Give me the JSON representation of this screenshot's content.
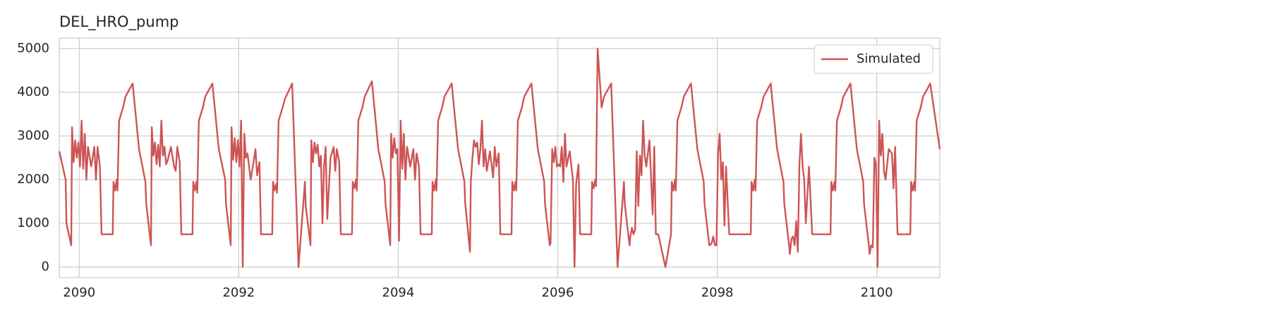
{
  "chart_data": {
    "type": "line",
    "title": "DEL_HRO_pump",
    "xlim": [
      2089.75,
      2100.79
    ],
    "ylim": [
      -240,
      5240
    ],
    "xticks": [
      2090,
      2092,
      2094,
      2096,
      2098,
      2100
    ],
    "yticks": [
      0,
      1000,
      2000,
      3000,
      4000,
      5000
    ],
    "grid": true,
    "legend": "upper right",
    "x": [
      2089.75,
      2089.83,
      2089.84,
      2089.9,
      2089.91,
      2089.93,
      2089.95,
      2089.97,
      2089.99,
      2090.01,
      2090.03,
      2090.05,
      2090.07,
      2090.09,
      2090.11,
      2090.15,
      2090.19,
      2090.21,
      2090.23,
      2090.26,
      2090.28,
      2090.42,
      2090.43,
      2090.45,
      2090.47,
      2090.48,
      2090.5,
      2090.55,
      2090.58,
      2090.67,
      2090.75,
      2090.83,
      2090.84,
      2090.9,
      2090.91,
      2090.93,
      2090.95,
      2090.97,
      2090.99,
      2091.01,
      2091.03,
      2091.05,
      2091.07,
      2091.09,
      2091.11,
      2091.15,
      2091.19,
      2091.21,
      2091.23,
      2091.26,
      2091.28,
      2091.42,
      2091.43,
      2091.45,
      2091.47,
      2091.48,
      2091.5,
      2091.55,
      2091.58,
      2091.67,
      2091.75,
      2091.83,
      2091.84,
      2091.9,
      2091.91,
      2091.93,
      2091.95,
      2091.97,
      2091.99,
      2092.01,
      2092.03,
      2092.05,
      2092.07,
      2092.09,
      2092.11,
      2092.15,
      2092.19,
      2092.21,
      2092.23,
      2092.26,
      2092.28,
      2092.42,
      2092.43,
      2092.45,
      2092.47,
      2092.48,
      2092.5,
      2092.55,
      2092.58,
      2092.67,
      2092.75,
      2092.83,
      2092.84,
      2092.9,
      2092.91,
      2092.93,
      2092.95,
      2092.97,
      2092.99,
      2093.01,
      2093.03,
      2093.05,
      2093.07,
      2093.09,
      2093.11,
      2093.15,
      2093.19,
      2093.21,
      2093.23,
      2093.26,
      2093.28,
      2093.42,
      2093.43,
      2093.45,
      2093.47,
      2093.48,
      2093.5,
      2093.55,
      2093.58,
      2093.67,
      2093.75,
      2093.83,
      2093.84,
      2093.9,
      2093.91,
      2093.93,
      2093.95,
      2093.97,
      2093.99,
      2094.01,
      2094.03,
      2094.05,
      2094.07,
      2094.09,
      2094.11,
      2094.15,
      2094.19,
      2094.21,
      2094.23,
      2094.26,
      2094.28,
      2094.42,
      2094.43,
      2094.45,
      2094.47,
      2094.48,
      2094.5,
      2094.55,
      2094.58,
      2094.67,
      2094.75,
      2094.83,
      2094.84,
      2094.9,
      2094.91,
      2094.93,
      2094.95,
      2094.97,
      2094.99,
      2095.01,
      2095.03,
      2095.05,
      2095.07,
      2095.09,
      2095.11,
      2095.15,
      2095.19,
      2095.21,
      2095.23,
      2095.26,
      2095.28,
      2095.42,
      2095.43,
      2095.45,
      2095.47,
      2095.48,
      2095.5,
      2095.55,
      2095.58,
      2095.67,
      2095.75,
      2095.83,
      2095.84,
      2095.9,
      2095.91,
      2095.93,
      2095.95,
      2095.97,
      2095.99,
      2096.01,
      2096.03,
      2096.05,
      2096.07,
      2096.09,
      2096.11,
      2096.15,
      2096.19,
      2096.21,
      2096.23,
      2096.26,
      2096.28,
      2096.42,
      2096.43,
      2096.45,
      2096.47,
      2096.48,
      2096.5,
      2096.55,
      2096.58,
      2096.67,
      2096.75,
      2096.83,
      2096.84,
      2096.9,
      2096.91,
      2096.93,
      2096.95,
      2096.97,
      2096.99,
      2097.01,
      2097.03,
      2097.05,
      2097.07,
      2097.09,
      2097.11,
      2097.15,
      2097.19,
      2097.21,
      2097.23,
      2097.26,
      2097.35,
      2097.42,
      2097.43,
      2097.45,
      2097.47,
      2097.48,
      2097.5,
      2097.55,
      2097.58,
      2097.67,
      2097.75,
      2097.83,
      2097.84,
      2097.9,
      2097.91,
      2097.93,
      2097.95,
      2097.97,
      2097.99,
      2098.01,
      2098.03,
      2098.05,
      2098.07,
      2098.09,
      2098.11,
      2098.15,
      2098.19,
      2098.21,
      2098.23,
      2098.26,
      2098.28,
      2098.42,
      2098.43,
      2098.45,
      2098.47,
      2098.48,
      2098.5,
      2098.55,
      2098.58,
      2098.67,
      2098.75,
      2098.83,
      2098.84,
      2098.9,
      2098.91,
      2098.93,
      2098.95,
      2098.97,
      2098.99,
      2099.01,
      2099.03,
      2099.05,
      2099.07,
      2099.09,
      2099.11,
      2099.15,
      2099.19,
      2099.21,
      2099.23,
      2099.26,
      2099.28,
      2099.42,
      2099.43,
      2099.45,
      2099.47,
      2099.48,
      2099.5,
      2099.55,
      2099.58,
      2099.67,
      2099.75,
      2099.83,
      2099.84,
      2099.9,
      2099.91,
      2099.93,
      2099.95,
      2099.97,
      2099.99,
      2100.01,
      2100.03,
      2100.05,
      2100.07,
      2100.09,
      2100.11,
      2100.15,
      2100.19,
      2100.21,
      2100.23,
      2100.26,
      2100.28,
      2100.42,
      2100.43,
      2100.45,
      2100.47,
      2100.48,
      2100.5,
      2100.55,
      2100.58,
      2100.67,
      2100.79
    ],
    "series": [
      {
        "name": "Simulated",
        "color": "#cd5555",
        "values": [
          2650,
          2000,
          1000,
          500,
          3200,
          2400,
          2900,
          2500,
          2850,
          2300,
          3350,
          2250,
          3050,
          2000,
          2750,
          2300,
          2750,
          2000,
          2750,
          2300,
          750,
          750,
          1950,
          1750,
          2000,
          1750,
          3350,
          3650,
          3900,
          4200,
          2700,
          1950,
          1450,
          500,
          3200,
          2550,
          2850,
          2350,
          2800,
          2300,
          3350,
          2550,
          2750,
          2350,
          2450,
          2750,
          2300,
          2200,
          2750,
          2400,
          750,
          750,
          1950,
          1750,
          1950,
          1700,
          3350,
          3650,
          3900,
          4200,
          2700,
          2000,
          1450,
          500,
          3200,
          2450,
          2950,
          2400,
          2900,
          2300,
          3350,
          0,
          3050,
          2500,
          2600,
          2000,
          2450,
          2700,
          2100,
          2400,
          750,
          750,
          1950,
          1750,
          1900,
          1700,
          3350,
          3650,
          3850,
          4200,
          0,
          1950,
          1400,
          500,
          2900,
          2400,
          2850,
          2600,
          2800,
          2300,
          2550,
          1000,
          2300,
          2750,
          1100,
          2500,
          2750,
          2200,
          2700,
          2400,
          750,
          750,
          1950,
          1800,
          2000,
          1750,
          3350,
          3650,
          3900,
          4250,
          2700,
          1950,
          1450,
          500,
          3050,
          2500,
          2950,
          2600,
          2700,
          600,
          3350,
          2250,
          3050,
          2000,
          2750,
          2300,
          2700,
          2000,
          2600,
          2300,
          750,
          750,
          1950,
          1750,
          2000,
          1750,
          3350,
          3650,
          3900,
          4200,
          2700,
          1950,
          1450,
          350,
          1950,
          2500,
          2900,
          2750,
          2850,
          2350,
          2700,
          3350,
          2300,
          2700,
          2200,
          2650,
          2050,
          2750,
          2300,
          2600,
          750,
          750,
          1950,
          1750,
          1950,
          1750,
          3350,
          3650,
          3900,
          4200,
          2700,
          1950,
          1450,
          500,
          550,
          2700,
          2400,
          2750,
          2300,
          2350,
          2300,
          2750,
          1950,
          3050,
          2300,
          2650,
          2000,
          0,
          1900,
          2350,
          750,
          750,
          1950,
          1800,
          2000,
          1850,
          5000,
          3650,
          3900,
          4200,
          0,
          1950,
          1450,
          500,
          700,
          900,
          750,
          850,
          2650,
          1400,
          2550,
          2100,
          3350,
          2550,
          2300,
          2900,
          1200,
          2750,
          750,
          750,
          0,
          750,
          1950,
          1750,
          2000,
          1750,
          3350,
          3650,
          3900,
          4200,
          2700,
          1950,
          1450,
          500,
          500,
          550,
          700,
          500,
          500,
          2600,
          3050,
          2000,
          2400,
          950,
          2300,
          750,
          750,
          750,
          750,
          750,
          750,
          750,
          1950,
          1750,
          2000,
          1750,
          3350,
          3650,
          3900,
          4200,
          2700,
          1950,
          1450,
          500,
          300,
          650,
          700,
          500,
          1050,
          350,
          2350,
          3050,
          2300,
          2000,
          1000,
          2300,
          750,
          750,
          750,
          750,
          750,
          750,
          1950,
          1750,
          1950,
          1750,
          3350,
          3650,
          3900,
          4200,
          2700,
          1950,
          1450,
          500,
          300,
          500,
          450,
          2500,
          2350,
          0,
          3350,
          2550,
          3050,
          2200,
          2000,
          2700,
          2600,
          1800,
          2750,
          750,
          750,
          750,
          1950,
          1750,
          1950,
          1750,
          3350,
          3650,
          3900,
          4200,
          2700
        ]
      }
    ]
  }
}
